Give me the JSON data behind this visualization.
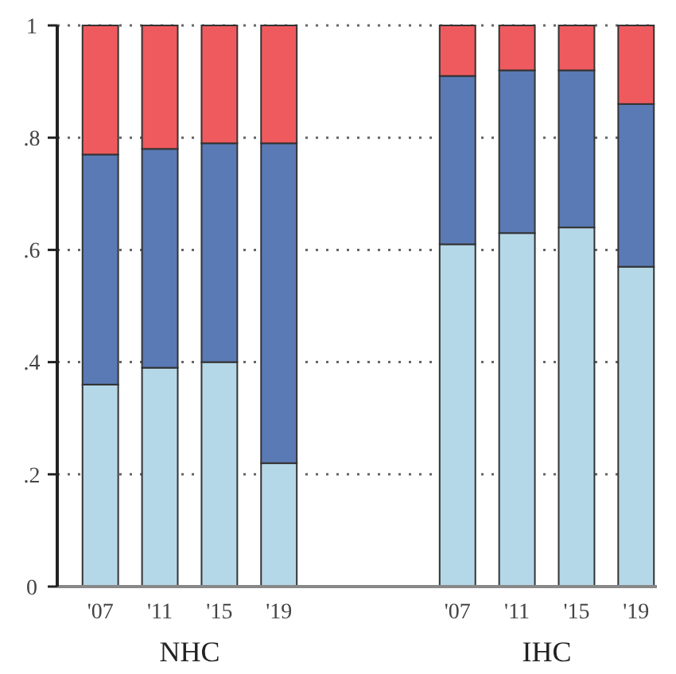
{
  "chart_data": {
    "type": "bar",
    "stacked": true,
    "categories": [
      "'07",
      "'11",
      "'15",
      "'19",
      null,
      null,
      "'07",
      "'11",
      "'15",
      "'19"
    ],
    "series": [
      {
        "color": "#b5d8e8",
        "values": [
          0.36,
          0.39,
          0.4,
          0.22,
          null,
          null,
          0.61,
          0.63,
          0.64,
          0.57
        ]
      },
      {
        "color": "#5a7ab5",
        "values": [
          0.41,
          0.39,
          0.39,
          0.57,
          null,
          null,
          0.3,
          0.29,
          0.28,
          0.29
        ]
      },
      {
        "color": "#ef5a5e",
        "values": [
          0.23,
          0.22,
          0.21,
          0.21,
          null,
          null,
          0.09,
          0.08,
          0.08,
          0.14
        ]
      }
    ],
    "ylim": [
      0,
      1
    ],
    "yticks": [
      {
        "value": 0,
        "label": "0"
      },
      {
        "value": 0.2,
        "label": ".2"
      },
      {
        "value": 0.4,
        "label": ".4"
      },
      {
        "value": 0.6,
        "label": ".6"
      },
      {
        "value": 0.8,
        "label": ".8"
      },
      {
        "value": 1,
        "label": "1"
      }
    ],
    "grid": "y",
    "annotations": [
      "NHC",
      "IHC"
    ]
  }
}
